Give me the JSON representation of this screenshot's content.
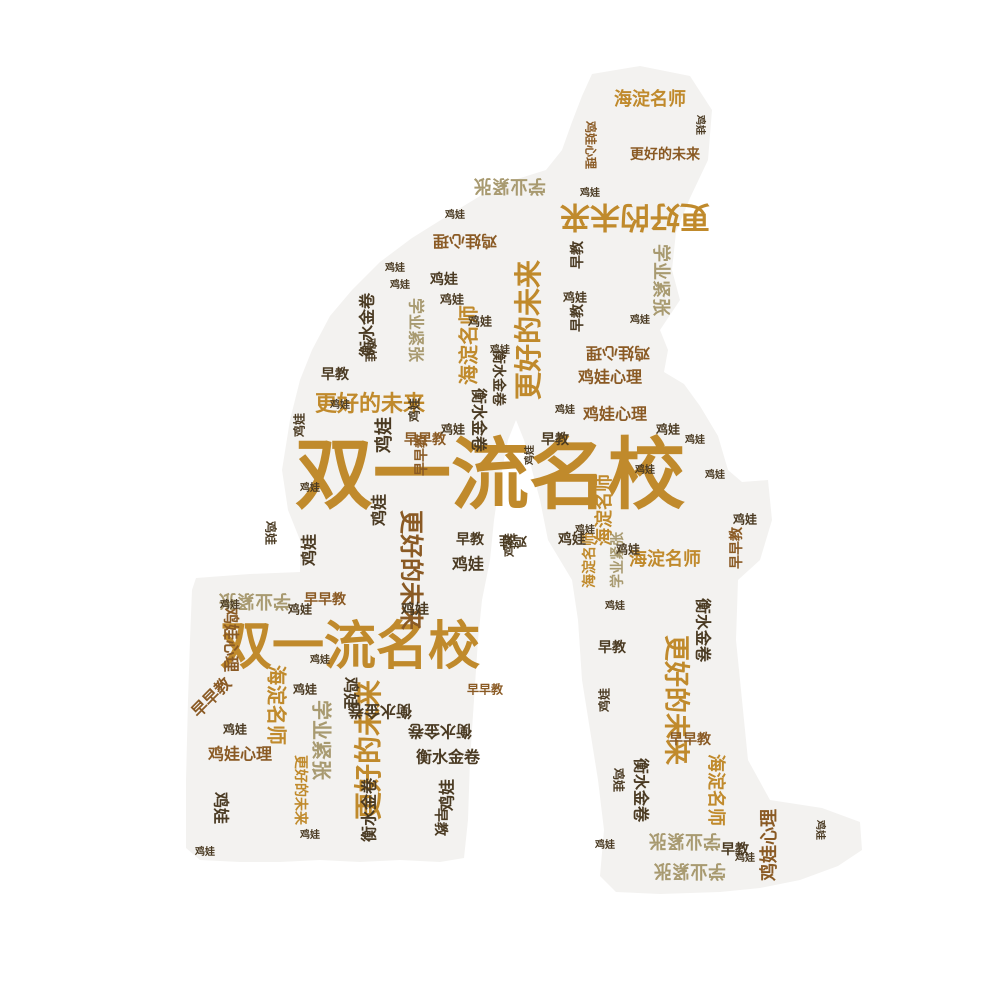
{
  "colors": {
    "background": "#ffffff",
    "silhouette": "#f3f2f0",
    "palette": {
      "gold": "#c08a2c",
      "brown": "#8a5a24",
      "dark": "#4a3a22",
      "olive": "#a89a70"
    }
  },
  "words": [
    {
      "text": "双一流名校",
      "color": "gold"
    },
    {
      "text": "双一流名校",
      "color": "gold"
    },
    {
      "text": "更好的未来",
      "color": "gold"
    },
    {
      "text": "更好的未来",
      "color": "gold"
    },
    {
      "text": "更好的未来",
      "color": "gold"
    },
    {
      "text": "更好的未来",
      "color": "brown"
    },
    {
      "text": "更好的未来",
      "color": "gold"
    },
    {
      "text": "更好的未来",
      "color": "gold"
    },
    {
      "text": "更好的未来",
      "color": "gold"
    },
    {
      "text": "更好的未来",
      "color": "brown"
    },
    {
      "text": "海淀名师",
      "color": "gold"
    },
    {
      "text": "海淀名师",
      "color": "gold"
    },
    {
      "text": "海淀名师",
      "color": "gold"
    },
    {
      "text": "海淀名师",
      "color": "gold"
    },
    {
      "text": "海淀名师",
      "color": "gold"
    },
    {
      "text": "海淀名师",
      "color": "gold"
    },
    {
      "text": "海淀名师",
      "color": "gold"
    },
    {
      "text": "学业紧张",
      "color": "olive"
    },
    {
      "text": "学业紧张",
      "color": "olive"
    },
    {
      "text": "学业紧张",
      "color": "olive"
    },
    {
      "text": "学业紧张",
      "color": "olive"
    },
    {
      "text": "学业紧张",
      "color": "olive"
    },
    {
      "text": "学业紧张",
      "color": "olive"
    },
    {
      "text": "学业紧张",
      "color": "olive"
    },
    {
      "text": "学业紧张",
      "color": "olive"
    },
    {
      "text": "鸡娃心理",
      "color": "brown"
    },
    {
      "text": "鸡娃心理",
      "color": "brown"
    },
    {
      "text": "鸡娃心理",
      "color": "brown"
    },
    {
      "text": "鸡娃心理",
      "color": "brown"
    },
    {
      "text": "鸡娃心理",
      "color": "brown"
    },
    {
      "text": "鸡娃心理",
      "color": "brown"
    },
    {
      "text": "鸡娃心理",
      "color": "brown"
    },
    {
      "text": "鸡娃心理",
      "color": "brown"
    },
    {
      "text": "衡水金卷",
      "color": "dark"
    },
    {
      "text": "衡水金卷",
      "color": "dark"
    },
    {
      "text": "衡水金卷",
      "color": "dark"
    },
    {
      "text": "衡水金卷",
      "color": "dark"
    },
    {
      "text": "衡水金卷",
      "color": "dark"
    },
    {
      "text": "衡水金卷",
      "color": "dark"
    },
    {
      "text": "衡水金卷",
      "color": "dark"
    },
    {
      "text": "衡水金卷",
      "color": "dark"
    },
    {
      "text": "衡水金卷",
      "color": "dark"
    },
    {
      "text": "早教",
      "color": "dark"
    },
    {
      "text": "早教",
      "color": "dark"
    },
    {
      "text": "早教",
      "color": "dark"
    },
    {
      "text": "早教",
      "color": "dark"
    },
    {
      "text": "早教",
      "color": "dark"
    },
    {
      "text": "早教",
      "color": "dark"
    },
    {
      "text": "早教",
      "color": "dark"
    },
    {
      "text": "早教",
      "color": "dark"
    },
    {
      "text": "早早教",
      "color": "brown"
    },
    {
      "text": "早早教",
      "color": "brown"
    },
    {
      "text": "早早教",
      "color": "brown"
    },
    {
      "text": "早早教",
      "color": "brown"
    },
    {
      "text": "早早教",
      "color": "brown"
    },
    {
      "text": "早早教",
      "color": "brown"
    },
    {
      "text": "早早教",
      "color": "brown"
    },
    {
      "text": "鸡娃",
      "color": "dark"
    },
    {
      "text": "鸡娃",
      "color": "dark"
    },
    {
      "text": "鸡娃",
      "color": "dark"
    },
    {
      "text": "鸡娃",
      "color": "dark"
    },
    {
      "text": "鸡娃",
      "color": "dark"
    },
    {
      "text": "鸡娃",
      "color": "dark"
    },
    {
      "text": "鸡娃",
      "color": "dark"
    },
    {
      "text": "鸡娃",
      "color": "dark"
    },
    {
      "text": "鸡娃",
      "color": "dark"
    },
    {
      "text": "鸡娃",
      "color": "dark"
    },
    {
      "text": "鸡娃",
      "color": "dark"
    },
    {
      "text": "鸡娃",
      "color": "dark"
    },
    {
      "text": "鸡娃",
      "color": "dark"
    },
    {
      "text": "鸡娃",
      "color": "dark"
    },
    {
      "text": "鸡娃",
      "color": "dark"
    },
    {
      "text": "鸡娃",
      "color": "dark"
    },
    {
      "text": "鸡娃",
      "color": "dark"
    },
    {
      "text": "鸡娃",
      "color": "dark"
    },
    {
      "text": "鸡娃",
      "color": "dark"
    },
    {
      "text": "鸡娃",
      "color": "dark"
    },
    {
      "text": "鸡娃",
      "color": "dark"
    },
    {
      "text": "鸡娃",
      "color": "dark"
    },
    {
      "text": "鸡娃",
      "color": "dark"
    },
    {
      "text": "鸡娃",
      "color": "dark"
    },
    {
      "text": "鸡娃",
      "color": "dark"
    },
    {
      "text": "鸡娃",
      "color": "dark"
    },
    {
      "text": "鸡娃",
      "color": "dark"
    },
    {
      "text": "鸡娃",
      "color": "dark"
    },
    {
      "text": "鸡娃",
      "color": "dark"
    },
    {
      "text": "鸡娃",
      "color": "dark"
    },
    {
      "text": "鸡娃",
      "color": "dark"
    },
    {
      "text": "鸡娃",
      "color": "dark"
    },
    {
      "text": "鸡娃",
      "color": "dark"
    },
    {
      "text": "鸡娃",
      "color": "dark"
    },
    {
      "text": "鸡娃",
      "color": "dark"
    },
    {
      "text": "鸡娃",
      "color": "dark"
    },
    {
      "text": "鸡娃",
      "color": "dark"
    },
    {
      "text": "鸡娃",
      "color": "dark"
    },
    {
      "text": "鸡娃",
      "color": "dark"
    },
    {
      "text": "鸡娃",
      "color": "dark"
    },
    {
      "text": "鸡娃",
      "color": "dark"
    },
    {
      "text": "鸡娃",
      "color": "dark"
    },
    {
      "text": "鸡娃",
      "color": "dark"
    },
    {
      "text": "鸡娃",
      "color": "dark"
    },
    {
      "text": "鸡娃",
      "color": "dark"
    },
    {
      "text": "鸡娃",
      "color": "dark"
    },
    {
      "text": "鸡娃",
      "color": "dark"
    },
    {
      "text": "鸡娃",
      "color": "dark"
    },
    {
      "text": "鸡娃",
      "color": "dark"
    },
    {
      "text": "鸡娃",
      "color": "dark"
    },
    {
      "text": "鸡娃",
      "color": "dark"
    },
    {
      "text": "鸡娃",
      "color": "dark"
    },
    {
      "text": "鸡娃",
      "color": "dark"
    },
    {
      "text": "鸡娃",
      "color": "dark"
    },
    {
      "text": "鸡娃",
      "color": "dark"
    },
    {
      "text": "鸡娃",
      "color": "dark"
    },
    {
      "text": "鸡娃",
      "color": "dark"
    },
    {
      "text": "鸡娃",
      "color": "dark"
    },
    {
      "text": "鸡娃",
      "color": "dark"
    },
    {
      "text": "鸡娃",
      "color": "dark"
    },
    {
      "text": "鸡娃",
      "color": "dark"
    },
    {
      "text": "鸡娃",
      "color": "dark"
    },
    {
      "text": "鸡娃",
      "color": "dark"
    },
    {
      "text": "鸡娃",
      "color": "dark"
    },
    {
      "text": "鸡娃",
      "color": "dark"
    },
    {
      "text": "鸡娃",
      "color": "dark"
    },
    {
      "text": "鸡娃",
      "color": "dark"
    },
    {
      "text": "鸡娃",
      "color": "dark"
    },
    {
      "text": "鸡娃",
      "color": "dark"
    },
    {
      "text": "鸡娃",
      "color": "dark"
    },
    {
      "text": "鸡娃",
      "color": "dark"
    }
  ]
}
